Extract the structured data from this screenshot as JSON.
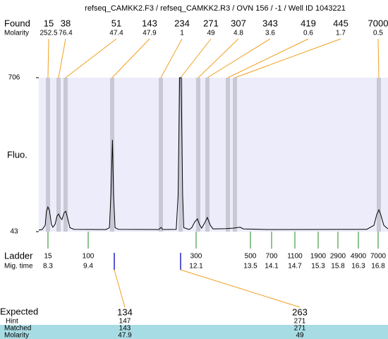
{
  "chart_data": {
    "type": "line",
    "title": "refseq_CAMKK2.F3 / refseq_CAMKK2.R3 / OVN 156 / -1 / Well ID 1043221",
    "y_label": "Fluo.",
    "ylim": [
      43,
      706
    ],
    "yticks": [
      43,
      706
    ],
    "xlim": [
      8.0,
      17.2
    ],
    "x": [
      8.0,
      8.09,
      8.17,
      8.2,
      8.24,
      8.28,
      8.33,
      8.37,
      8.43,
      8.48,
      8.52,
      8.56,
      8.61,
      8.67,
      8.71,
      8.76,
      8.82,
      8.93,
      9.77,
      9.86,
      9.9,
      9.94,
      9.97,
      10.01,
      10.1,
      11.16,
      11.22,
      11.27,
      11.62,
      11.67,
      11.71,
      11.75,
      11.79,
      11.82,
      11.96,
      12.03,
      12.11,
      12.18,
      12.23,
      12.29,
      12.37,
      12.44,
      12.52,
      12.59,
      12.93,
      13.11,
      13.3,
      13.39,
      14.04,
      16.64,
      16.83,
      16.9,
      16.96,
      17.01,
      17.09,
      17.2
    ],
    "series": [
      {
        "name": "Fluo.",
        "color": "#000000",
        "values": [
          50,
          52,
          70,
          130,
          149,
          135,
          75,
          62,
          75,
          110,
          119,
          105,
          95,
          125,
          131,
          100,
          60,
          53,
          52,
          60,
          200,
          438,
          200,
          60,
          53,
          52,
          61,
          52,
          53,
          200,
          706,
          706,
          200,
          60,
          52,
          60,
          85,
          98,
          75,
          58,
          80,
          104,
          70,
          55,
          56,
          58,
          62,
          55,
          52,
          53,
          70,
          115,
          137,
          115,
          70,
          55
        ]
      }
    ],
    "plot_color": "#ececfb",
    "band_color": "#c9c9d6"
  },
  "found": {
    "label": "Found",
    "molarity_label": "Molarity",
    "peaks": [
      {
        "size": "15",
        "molarity": "252.5"
      },
      {
        "size": "38",
        "molarity": "76.4"
      },
      {
        "size": "51",
        "molarity": "47.4"
      },
      {
        "size": "143",
        "molarity": "47.9"
      },
      {
        "size": "234",
        "molarity": "1"
      },
      {
        "size": "271",
        "molarity": "49"
      },
      {
        "size": "307",
        "molarity": "4.8"
      },
      {
        "size": "343",
        "molarity": "3.6"
      },
      {
        "size": "419",
        "molarity": "0.6"
      },
      {
        "size": "445",
        "molarity": "1.7"
      },
      {
        "size": "7000",
        "molarity": "0.5"
      }
    ]
  },
  "ladder": {
    "label": "Ladder",
    "time_label": "Mig. time",
    "entries": [
      {
        "size": "15",
        "time": "8.3"
      },
      {
        "size": "100",
        "time": "9.4"
      },
      {
        "size": "300",
        "time": "12.1"
      },
      {
        "size": "500",
        "time": "13.5"
      },
      {
        "size": "700",
        "time": "14.1"
      },
      {
        "size": "1100",
        "time": "14.7"
      },
      {
        "size": "1900",
        "time": "15.3"
      },
      {
        "size": "2900",
        "time": "15.8"
      },
      {
        "size": "4900",
        "time": "16.3"
      },
      {
        "size": "7000",
        "time": "16.8"
      }
    ]
  },
  "expected": {
    "label": "Expected",
    "hint_label": "Hint",
    "matched_label": "Matched",
    "molarity_label": "Molarity",
    "columns": [
      {
        "expected": "134",
        "hint": "147",
        "matched": "143",
        "molarity": "47.9"
      },
      {
        "expected": "263",
        "hint": "271",
        "matched": "271",
        "molarity": "49"
      }
    ]
  }
}
